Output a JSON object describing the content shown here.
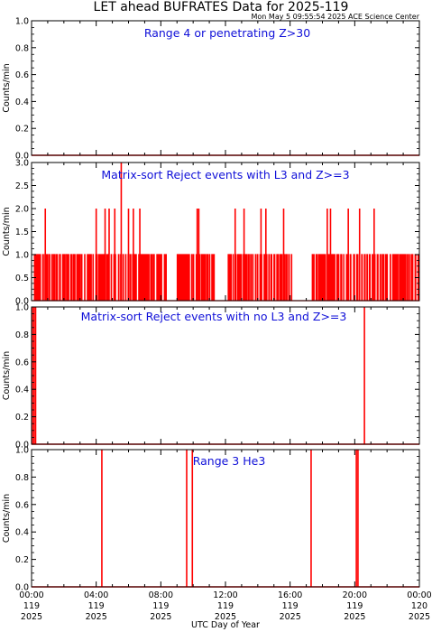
{
  "title": "LET ahead BUFRATES Data for 2025-119",
  "timestamp": "Mon May  5 09:55:54 2025 ACE Science Center",
  "xlabel": "UTC Day of Year",
  "colors": {
    "data": "#ff0000",
    "panel_title": "#1010d8",
    "axes": "#000000"
  },
  "chart_data": [
    {
      "type": "line",
      "title": "Range 4 or  penetrating Z>30",
      "ylabel": "Counts/min",
      "ylim": [
        0,
        1
      ],
      "yticks": [
        0.0,
        0.2,
        0.4,
        0.6,
        0.8,
        1.0
      ],
      "ytick_labels": [
        "0.0",
        "0.2",
        "0.4",
        "0.6",
        "0.8",
        "1.0"
      ],
      "xlim": [
        0,
        24
      ],
      "x_units": "hours UTC",
      "spikes": []
    },
    {
      "type": "line",
      "title": "Matrix-sort Reject events with L3 and Z>=3",
      "ylabel": "Counts/min",
      "ylim": [
        0,
        3
      ],
      "yticks": [
        0.0,
        0.5,
        1.0,
        1.5,
        2.0,
        2.5,
        3.0
      ],
      "ytick_labels": [
        "0.0",
        "0.5",
        "1.0",
        "1.5",
        "2.0",
        "2.5",
        "3.0"
      ],
      "xlim": [
        0,
        24
      ],
      "x_units": "hours UTC",
      "dense_ones": {
        "note": "frequent 1-count minutes throughout the day",
        "gaps": [
          [
            8.4,
            9.0
          ],
          [
            11.3,
            12.0
          ],
          [
            16.1,
            17.3
          ]
        ]
      },
      "spikes": [
        {
          "x": 0.85,
          "y": 2
        },
        {
          "x": 4.0,
          "y": 2
        },
        {
          "x": 4.55,
          "y": 2
        },
        {
          "x": 4.8,
          "y": 2
        },
        {
          "x": 5.15,
          "y": 2
        },
        {
          "x": 5.55,
          "y": 3
        },
        {
          "x": 6.0,
          "y": 2
        },
        {
          "x": 6.3,
          "y": 2
        },
        {
          "x": 6.7,
          "y": 2
        },
        {
          "x": 10.25,
          "y": 2
        },
        {
          "x": 10.35,
          "y": 2
        },
        {
          "x": 12.6,
          "y": 2
        },
        {
          "x": 13.15,
          "y": 2
        },
        {
          "x": 14.2,
          "y": 2
        },
        {
          "x": 14.5,
          "y": 2
        },
        {
          "x": 15.6,
          "y": 2
        },
        {
          "x": 18.3,
          "y": 2
        },
        {
          "x": 18.5,
          "y": 2
        },
        {
          "x": 19.6,
          "y": 2
        },
        {
          "x": 20.3,
          "y": 2
        },
        {
          "x": 21.2,
          "y": 2
        }
      ]
    },
    {
      "type": "line",
      "title": "Matrix-sort Reject events with no L3 and Z>=3",
      "ylabel": "Counts/min",
      "ylim": [
        0,
        1
      ],
      "yticks": [
        0.0,
        0.2,
        0.4,
        0.6,
        0.8,
        1.0
      ],
      "ytick_labels": [
        "0.0",
        "0.2",
        "0.4",
        "0.6",
        "0.8",
        "1.0"
      ],
      "xlim": [
        0,
        24
      ],
      "x_units": "hours UTC",
      "spikes": [
        {
          "x": 0.05,
          "y": 1
        },
        {
          "x": 0.15,
          "y": 1
        },
        {
          "x": 0.25,
          "y": 1
        },
        {
          "x": 20.6,
          "y": 1
        }
      ]
    },
    {
      "type": "line",
      "title": "Range 3 He3",
      "ylabel": "Counts/min",
      "ylim": [
        0,
        1
      ],
      "yticks": [
        0.0,
        0.2,
        0.4,
        0.6,
        0.8,
        1.0
      ],
      "ytick_labels": [
        "0.0",
        "0.2",
        "0.4",
        "0.6",
        "0.8",
        "1.0"
      ],
      "xlim": [
        0,
        24
      ],
      "x_units": "hours UTC",
      "spikes": [
        {
          "x": 4.35,
          "y": 1
        },
        {
          "x": 9.6,
          "y": 1
        },
        {
          "x": 9.95,
          "y": 1
        },
        {
          "x": 17.3,
          "y": 1
        },
        {
          "x": 20.1,
          "y": 1
        },
        {
          "x": 20.2,
          "y": 1
        }
      ]
    }
  ],
  "xticks": [
    {
      "x": 0,
      "line1": "00:00",
      "line2": "119",
      "line3": "2025"
    },
    {
      "x": 4,
      "line1": "04:00",
      "line2": "119",
      "line3": "2025"
    },
    {
      "x": 8,
      "line1": "08:00",
      "line2": "119",
      "line3": "2025"
    },
    {
      "x": 12,
      "line1": "12:00",
      "line2": "119",
      "line3": "2025"
    },
    {
      "x": 16,
      "line1": "16:00",
      "line2": "119",
      "line3": "2025"
    },
    {
      "x": 20,
      "line1": "20:00",
      "line2": "119",
      "line3": "2025"
    },
    {
      "x": 24,
      "line1": "00:00",
      "line2": "120",
      "line3": "2025"
    }
  ]
}
